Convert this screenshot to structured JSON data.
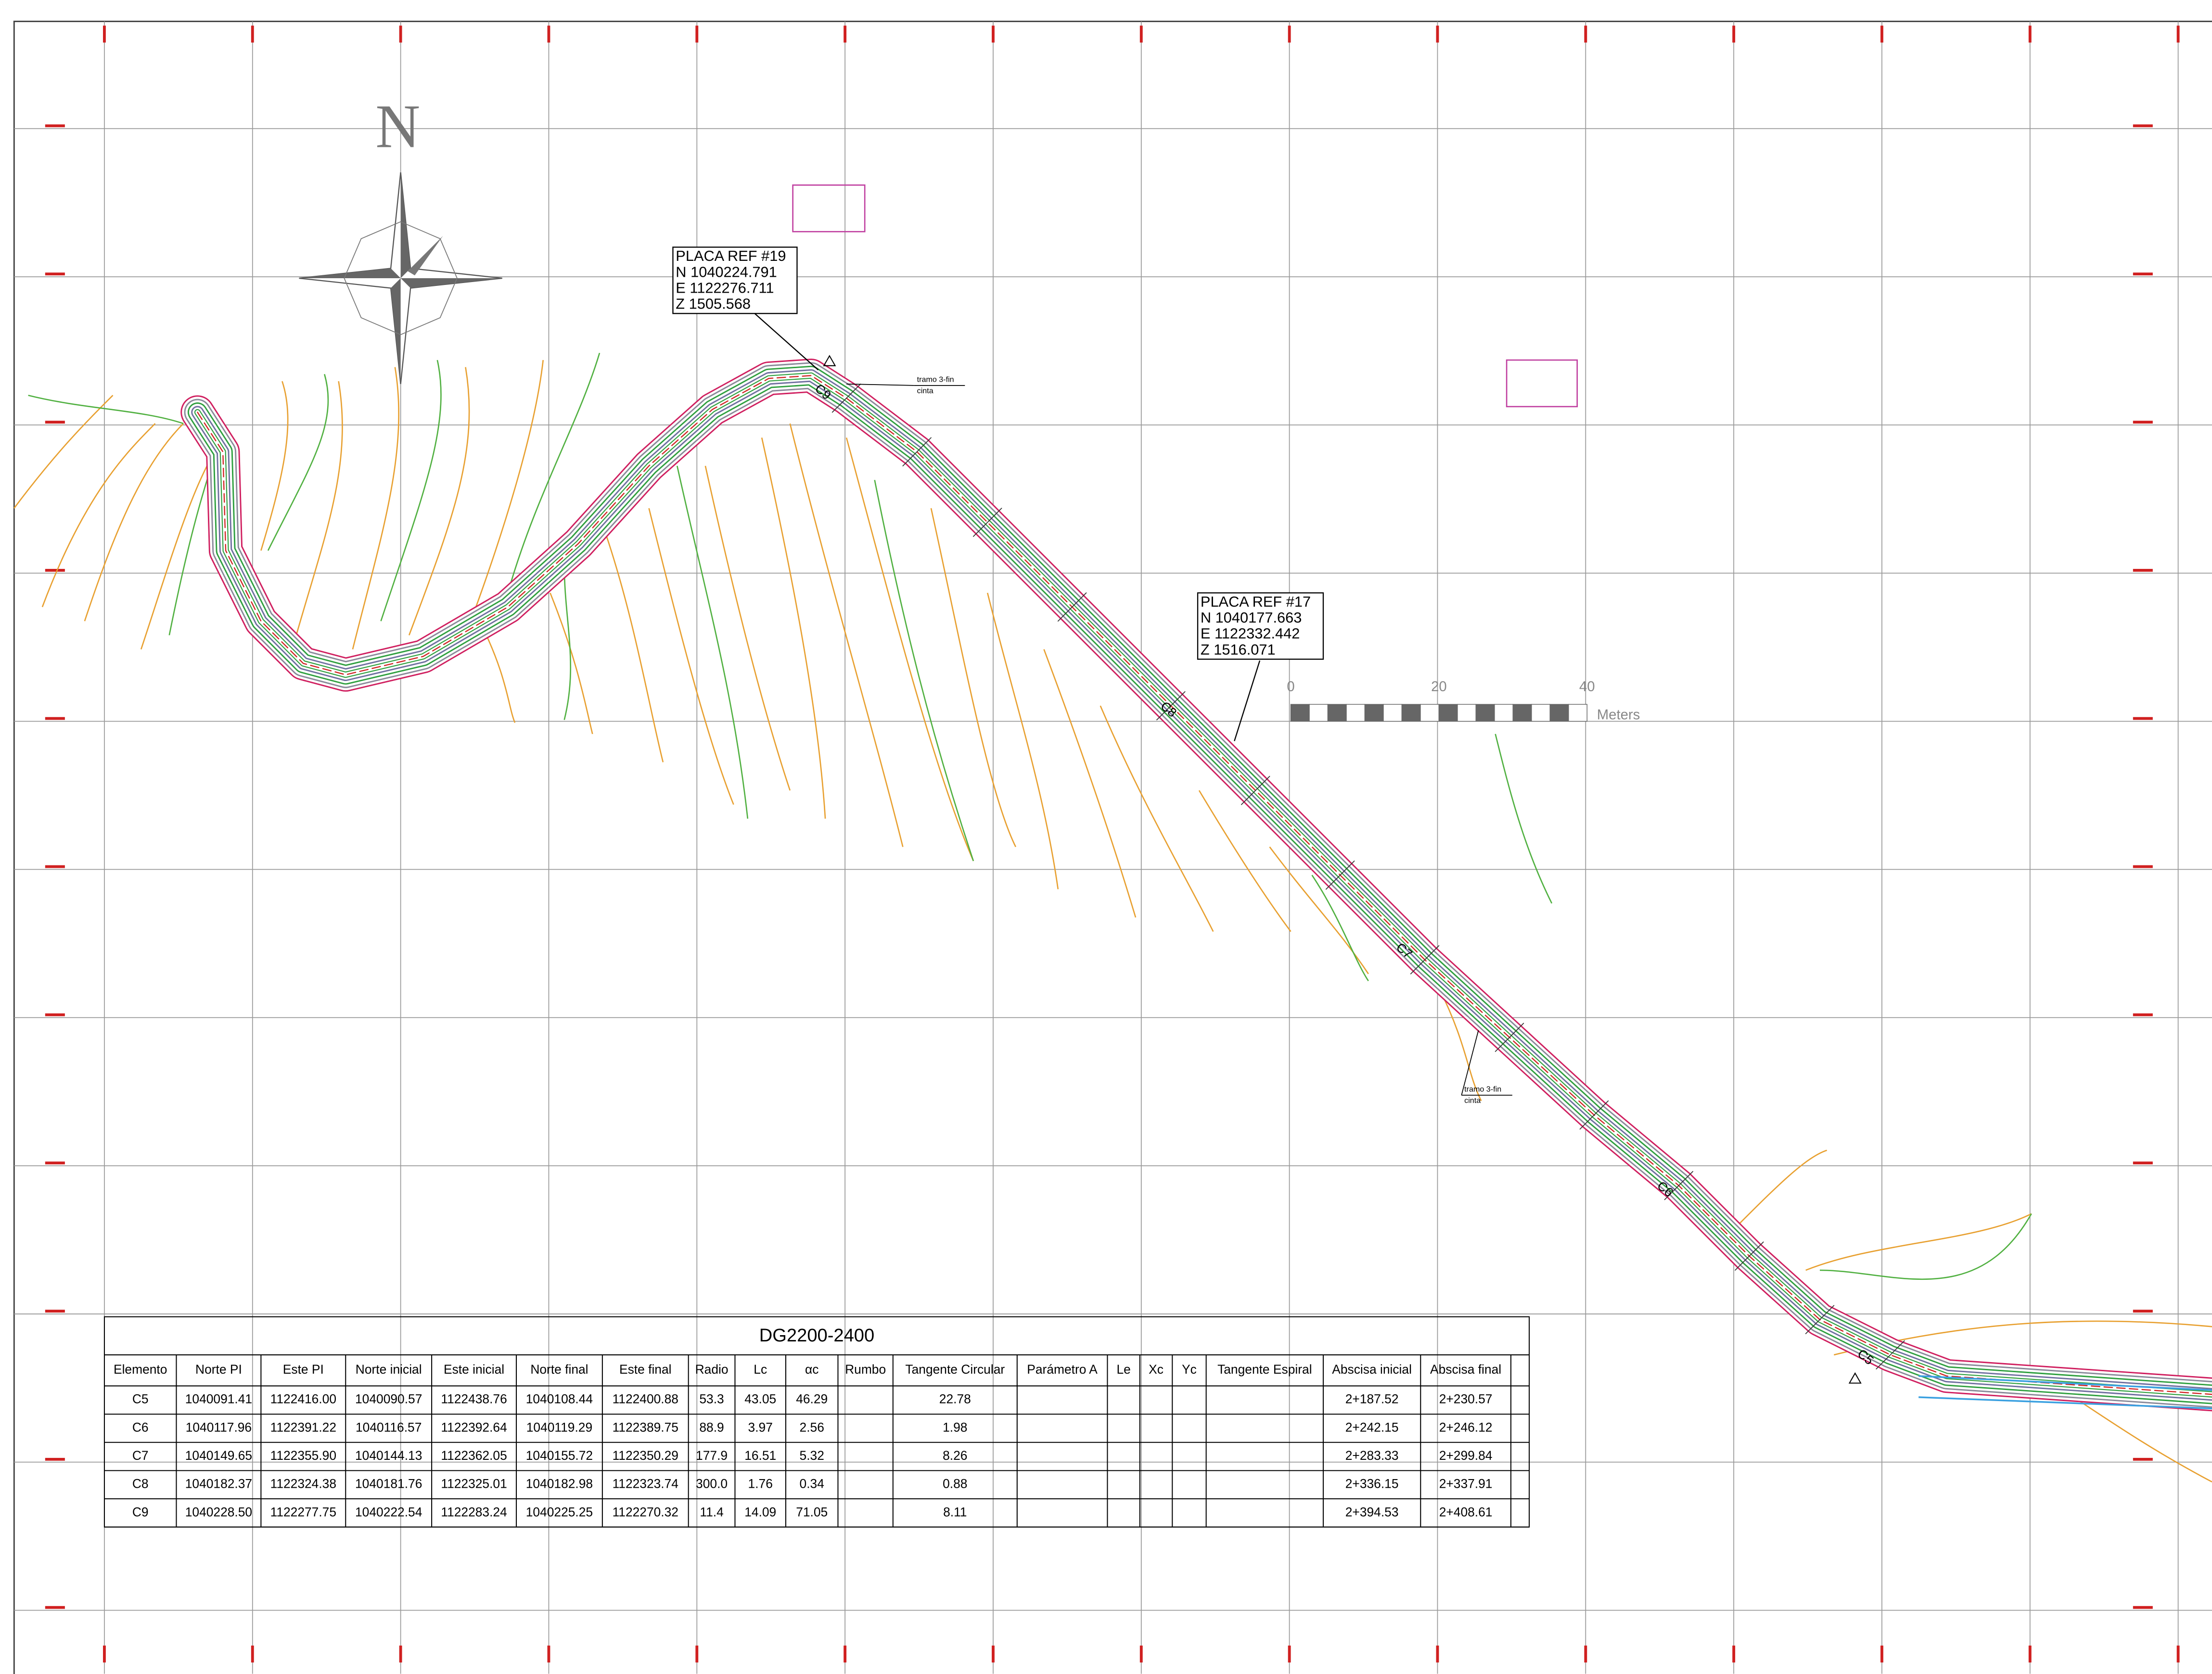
{
  "north": "N",
  "scale_bar": {
    "ticks": [
      "0",
      "20",
      "40"
    ],
    "unit": "Meters"
  },
  "references": [
    {
      "lines": [
        "PLACA REF #19",
        "N 1040224.791",
        "E 1122276.711",
        "Z 1505.568"
      ]
    },
    {
      "lines": [
        "PLACA REF #17",
        "N 1040177.663",
        "E 1122332.442",
        "Z 1516.071"
      ]
    }
  ],
  "notes": [
    {
      "lines": [
        "tramo 3-fin",
        "cinta"
      ]
    },
    {
      "lines": [
        "tramo 3-fin",
        "cinta"
      ]
    }
  ],
  "curve_labels": [
    "C9",
    "C8",
    "C7",
    "C6",
    "C5"
  ],
  "table": {
    "title": "DG2200-2400",
    "headers": [
      "Elemento",
      "Norte PI",
      "Este PI",
      "Norte inicial",
      "Este inicial",
      "Norte final",
      "Este final",
      "Radio",
      "Lc",
      "αc",
      "Rumbo",
      "Tangente Circular",
      "Parámetro A",
      "Le",
      "Xc",
      "Yc",
      "Tangente Espiral",
      "Abscisa inicial",
      "Abscisa final"
    ],
    "rows": [
      [
        "C5",
        "1040091.41",
        "1122416.00",
        "1040090.57",
        "1122438.76",
        "1040108.44",
        "1122400.88",
        "53.3",
        "43.05",
        "46.29",
        null,
        "22.78",
        null,
        null,
        null,
        null,
        null,
        "2+187.52",
        "2+230.57"
      ],
      [
        "C6",
        "1040117.96",
        "1122391.22",
        "1040116.57",
        "1122392.64",
        "1040119.29",
        "1122389.75",
        "88.9",
        "3.97",
        "2.56",
        null,
        "1.98",
        null,
        null,
        null,
        null,
        null,
        "2+242.15",
        "2+246.12"
      ],
      [
        "C7",
        "1040149.65",
        "1122355.90",
        "1040144.13",
        "1122362.05",
        "1040155.72",
        "1122350.29",
        "177.9",
        "16.51",
        "5.32",
        null,
        "8.26",
        null,
        null,
        null,
        null,
        null,
        "2+283.33",
        "2+299.84"
      ],
      [
        "C8",
        "1040182.37",
        "1122324.38",
        "1040181.76",
        "1122325.01",
        "1040182.98",
        "1122323.74",
        "300.0",
        "1.76",
        "0.34",
        null,
        "0.88",
        null,
        null,
        null,
        null,
        null,
        "2+336.15",
        "2+337.91"
      ],
      [
        "C9",
        "1040228.50",
        "1122277.75",
        "1040222.54",
        "1122283.24",
        "1040225.25",
        "1122270.32",
        "11.4",
        "14.09",
        "71.05",
        null,
        "8.11",
        null,
        null,
        null,
        null,
        null,
        "2+394.53",
        "2+408.61"
      ]
    ]
  }
}
